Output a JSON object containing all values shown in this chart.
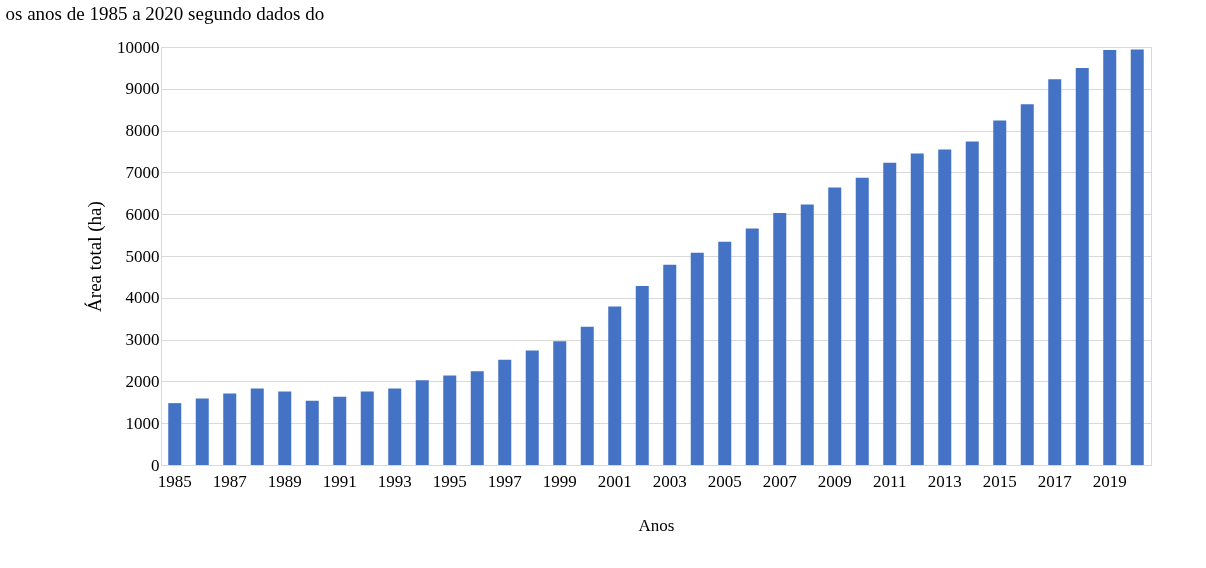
{
  "chart_data": {
    "type": "bar",
    "xlabel": "Anos",
    "ylabel": "Área total (ha)",
    "annotations": [
      "os anos de 1985 a 2020 segundo dados do"
    ],
    "categories": [
      "1985",
      null,
      "1987",
      null,
      "1989",
      null,
      "1991",
      null,
      "1993",
      null,
      "1995",
      null,
      "1997",
      null,
      "1999",
      null,
      "2001",
      null,
      "2003",
      null,
      "2005",
      null,
      "2007",
      null,
      "2009",
      null,
      "2011",
      null,
      "2013",
      null,
      "2015",
      null,
      "2017",
      null,
      "2019",
      null
    ],
    "values": [
      1480,
      1590,
      1710,
      1830,
      1760,
      1540,
      1630,
      1760,
      1830,
      2030,
      2140,
      2240,
      2520,
      2740,
      2960,
      3310,
      3790,
      4280,
      4790,
      5080,
      5340,
      5660,
      6030,
      6230,
      6640,
      6870,
      7230,
      7450,
      7550,
      7740,
      8240,
      8630,
      9230,
      9500,
      9930,
      9940
    ],
    "color": "#4472c4",
    "ylim": [
      0,
      10000
    ],
    "yticks": [
      0,
      1000,
      2000,
      3000,
      4000,
      5000,
      6000,
      7000,
      8000,
      9000,
      10000
    ],
    "grid": "y"
  }
}
